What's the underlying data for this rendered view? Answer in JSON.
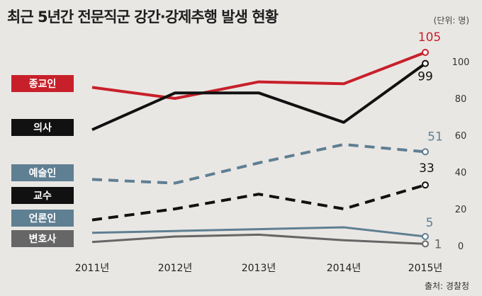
{
  "title": "최근 5년간 전문직군 강간·강제추행 발생 현황",
  "unit": "(단위: 명)",
  "source": "출처: 경찰청",
  "chart_data": {
    "type": "line",
    "categories": [
      "2011년",
      "2012년",
      "2013년",
      "2014년",
      "2015년"
    ],
    "ylim": [
      0,
      100
    ],
    "yticks": [
      0,
      20,
      40,
      60,
      80,
      100
    ],
    "series": [
      {
        "name": "종교인",
        "values": [
          86,
          80,
          89,
          88,
          105
        ],
        "end_label": "105",
        "color": "#c8202a",
        "dash": false,
        "width": 4
      },
      {
        "name": "의사",
        "values": [
          63,
          83,
          83,
          67,
          99
        ],
        "end_label": "99",
        "color": "#111111",
        "dash": false,
        "width": 4
      },
      {
        "name": "예술인",
        "values": [
          36,
          34,
          45,
          55,
          51
        ],
        "end_label": "51",
        "color": "#5f7f92",
        "dash": true,
        "width": 4
      },
      {
        "name": "교수",
        "values": [
          14,
          20,
          28,
          20,
          33
        ],
        "end_label": "33",
        "color": "#111111",
        "dash": true,
        "width": 4
      },
      {
        "name": "언론인",
        "values": [
          7,
          8,
          9,
          10,
          5
        ],
        "end_label": "5",
        "color": "#5f7f92",
        "dash": false,
        "width": 3
      },
      {
        "name": "변호사",
        "values": [
          2,
          5,
          6,
          3,
          1
        ],
        "end_label": "1",
        "color": "#666666",
        "dash": false,
        "width": 3
      }
    ]
  }
}
